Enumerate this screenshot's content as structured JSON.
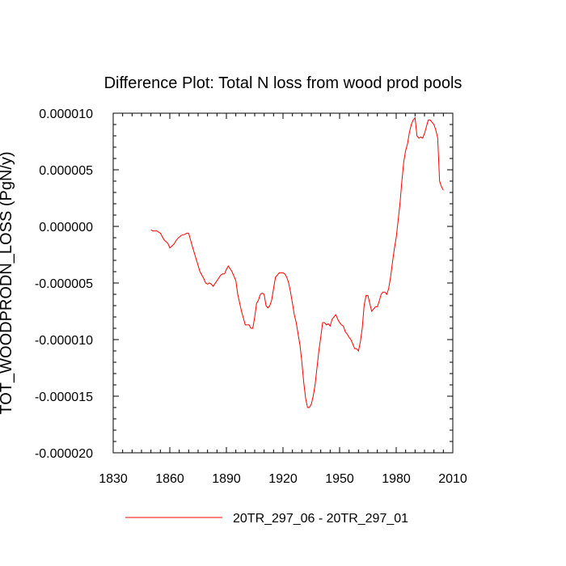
{
  "chart_data": {
    "type": "line",
    "title": "Difference Plot: Total N loss from wood prod pools",
    "xlabel": "",
    "ylabel": "TOT_WOODPRODN_LOSS  (PgN/y)",
    "xlim": [
      1830,
      2010
    ],
    "ylim": [
      -2e-05,
      1e-05
    ],
    "x_ticks": [
      1830,
      1860,
      1890,
      1920,
      1950,
      1980,
      2010
    ],
    "x_tick_labels": [
      "1830",
      "1860",
      "1890",
      "1920",
      "1950",
      "1980",
      "2010"
    ],
    "y_ticks": [
      -2e-05,
      -1.5e-05,
      -1e-05,
      -5e-06,
      0,
      5e-06,
      1e-05
    ],
    "y_tick_labels": [
      "-0.000020",
      "-0.000015",
      "-0.000010",
      "-0.000005",
      "0.000000",
      "0.000005",
      "0.000010"
    ],
    "grid": false,
    "legend_position": "bottom",
    "series": [
      {
        "name": "20TR_297_06 - 20TR_297_01",
        "color": "#ff0000",
        "x": [
          1850,
          1851,
          1853,
          1855,
          1857,
          1859,
          1860,
          1862,
          1864,
          1866,
          1868,
          1869,
          1870,
          1872,
          1874,
          1876,
          1878,
          1879,
          1880,
          1881,
          1882,
          1883,
          1885,
          1887,
          1888,
          1889,
          1890,
          1891,
          1893,
          1895,
          1896,
          1898,
          1900,
          1901,
          1902,
          1903,
          1904,
          1905,
          1906,
          1907,
          1908,
          1909,
          1910,
          1911,
          1912,
          1913,
          1914,
          1915,
          1916,
          1918,
          1919,
          1920,
          1921,
          1922,
          1923,
          1924,
          1925,
          1926,
          1927,
          1928,
          1929,
          1930,
          1931,
          1932,
          1933,
          1934,
          1935,
          1936,
          1937,
          1938,
          1939,
          1940,
          1941,
          1942,
          1943,
          1944,
          1945,
          1946,
          1947,
          1948,
          1949,
          1950,
          1951,
          1952,
          1953,
          1954,
          1955,
          1956,
          1957,
          1958,
          1959,
          1960,
          1961,
          1962,
          1963,
          1964,
          1965,
          1966,
          1967,
          1968,
          1969,
          1970,
          1971,
          1972,
          1973,
          1974,
          1975,
          1976,
          1977,
          1978,
          1979,
          1980,
          1981,
          1982,
          1983,
          1984,
          1985,
          1986,
          1987,
          1988,
          1989,
          1990,
          1991,
          1992,
          1993,
          1994,
          1995,
          1996,
          1997,
          1998,
          1999,
          2000,
          2001,
          2002,
          2003,
          2004,
          2005
        ],
        "y": [
          -3e-07,
          -4e-07,
          -4e-07,
          -6e-07,
          -1.2e-06,
          -1.5e-06,
          -1.9e-06,
          -1.6e-06,
          -1.1e-06,
          -8e-07,
          -7e-07,
          -6e-07,
          -6e-07,
          -1.8e-06,
          -2.9e-06,
          -4e-06,
          -4.6e-06,
          -5e-06,
          -5.1e-06,
          -5e-06,
          -5.1e-06,
          -5.3e-06,
          -4.8e-06,
          -4.3e-06,
          -4.2e-06,
          -4.2e-06,
          -3.8e-06,
          -3.5e-06,
          -4e-06,
          -4.8e-06,
          -6e-06,
          -7.5e-06,
          -8.7e-06,
          -8.7e-06,
          -8.7e-06,
          -9e-06,
          -9e-06,
          -8e-06,
          -6.8e-06,
          -6.5e-06,
          -6e-06,
          -5.9e-06,
          -6e-06,
          -7e-06,
          -7.2e-06,
          -7e-06,
          -6.5e-06,
          -5.5e-06,
          -4.5e-06,
          -4.1e-06,
          -4.1e-06,
          -4.1e-06,
          -4.2e-06,
          -4.5e-06,
          -5e-06,
          -5.8e-06,
          -6.8e-06,
          -7.8e-06,
          -8.5e-06,
          -9.5e-06,
          -1.05e-05,
          -1.2e-05,
          -1.38e-05,
          -1.52e-05,
          -1.6e-05,
          -1.6e-05,
          -1.57e-05,
          -1.5e-05,
          -1.4e-05,
          -1.25e-05,
          -1.1e-05,
          -9.8e-06,
          -8.5e-06,
          -8.5e-06,
          -8.7e-06,
          -8.6e-06,
          -8.8e-06,
          -8.2e-06,
          -8e-06,
          -7.8e-06,
          -8.2e-06,
          -8.5e-06,
          -8.7e-06,
          -8.8e-06,
          -9.3e-06,
          -9.5e-06,
          -9.8e-06,
          -1e-05,
          -1.04e-05,
          -1.08e-05,
          -1.08e-05,
          -1.1e-05,
          -1.02e-05,
          -9e-06,
          -7e-06,
          -6.1e-06,
          -6.1e-06,
          -6.8e-06,
          -7.5e-06,
          -7.3e-06,
          -7.1e-06,
          -7.1e-06,
          -6.6e-06,
          -6e-06,
          -5.8e-06,
          -5.8e-06,
          -6e-06,
          -5.5e-06,
          -4.5e-06,
          -3.2e-06,
          -2e-06,
          -1e-06,
          5e-07,
          2e-06,
          4e-06,
          5.7e-06,
          6.7e-06,
          7.3e-06,
          8.3e-06,
          9e-06,
          9.4e-06,
          9.6e-06,
          8e-06,
          7.8e-06,
          7.9e-06,
          7.8e-06,
          8.2e-06,
          8.8e-06,
          9.4e-06,
          9.4e-06,
          9.2e-06,
          9e-06,
          8.5e-06,
          7.8e-06,
          4e-06,
          3.5e-06,
          3.2e-06
        ]
      }
    ]
  }
}
